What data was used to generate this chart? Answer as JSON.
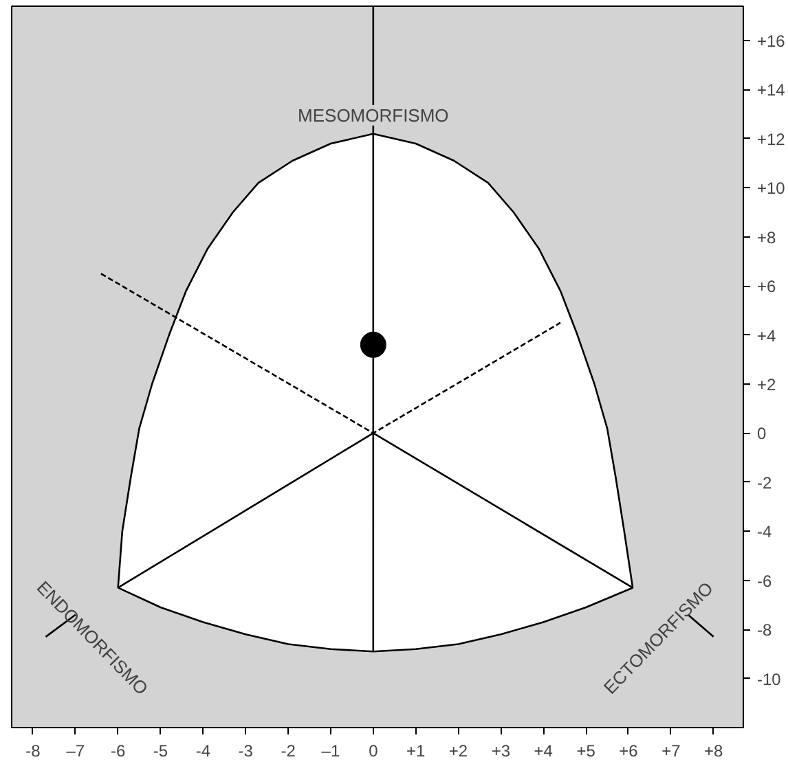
{
  "chart_data": {
    "type": "scatter",
    "xlim": [
      -8.5,
      8.7
    ],
    "ylim": [
      -12,
      17.4
    ],
    "xticks": [
      {
        "value": -8,
        "label": "-8"
      },
      {
        "value": -7,
        "label": "–7"
      },
      {
        "value": -6,
        "label": "-6"
      },
      {
        "value": -5,
        "label": "-5"
      },
      {
        "value": -4,
        "label": "-4"
      },
      {
        "value": -3,
        "label": "-3"
      },
      {
        "value": -2,
        "label": "-2"
      },
      {
        "value": -1,
        "label": "–1"
      },
      0,
      {
        "value": 1,
        "label": "+1"
      },
      {
        "value": 2,
        "label": "+2"
      },
      {
        "value": 3,
        "label": "+3"
      },
      {
        "value": 4,
        "label": "+4"
      },
      {
        "value": 5,
        "label": "+5"
      },
      {
        "value": 6,
        "label": "+6"
      },
      {
        "value": 7,
        "label": "+7"
      },
      {
        "value": 8,
        "label": "+8"
      }
    ],
    "yticks": [
      {
        "value": 16,
        "label": "+16"
      },
      {
        "value": 14,
        "label": "+14"
      },
      {
        "value": 12,
        "label": "+12"
      },
      {
        "value": 10,
        "label": "+10"
      },
      {
        "value": 8,
        "label": "+8"
      },
      {
        "value": 6,
        "label": "+6"
      },
      {
        "value": 4,
        "label": "+4"
      },
      {
        "value": 2,
        "label": "+2"
      },
      0,
      -2,
      -4,
      -6,
      -8,
      -10
    ],
    "grid": false,
    "series": [
      {
        "type": "area",
        "color": "#ffffff",
        "x": [
          0,
          -1.0,
          -1.9,
          -2.7,
          -3.3,
          -3.9,
          -4.4,
          -4.8,
          -5.2,
          -5.5,
          -5.7,
          -5.9,
          -6,
          -5,
          -4,
          -3,
          -2,
          -1,
          0,
          1,
          2,
          3,
          4,
          5,
          6.1,
          5.9,
          5.7,
          5.5,
          5.2,
          4.8,
          4.4,
          3.9,
          3.3,
          2.7,
          1.9,
          1.0,
          0
        ],
        "values": [
          12.2,
          11.8,
          11.1,
          10.2,
          9.0,
          7.5,
          5.8,
          4.0,
          2.0,
          0.2,
          -1.8,
          -4.0,
          -6.3,
          -7.1,
          -7.7,
          -8.2,
          -8.6,
          -8.8,
          -8.9,
          -8.8,
          -8.6,
          -8.2,
          -7.7,
          -7.1,
          -6.3,
          -4.0,
          -1.8,
          0.2,
          2.0,
          4.0,
          5.8,
          7.5,
          9.0,
          10.2,
          11.1,
          11.8,
          12.2
        ]
      },
      {
        "type": "line",
        "color": "#000000",
        "x": [
          -6,
          0,
          0
        ],
        "values": [
          -6.3,
          0,
          17.4
        ]
      },
      {
        "type": "line",
        "color": "#000000",
        "x": [
          6.1,
          0,
          0
        ],
        "values": [
          -6.3,
          0,
          -8.9
        ]
      },
      {
        "type": "line",
        "color": "#000000",
        "x": [
          -6.4,
          0,
          4.4
        ],
        "values": [
          6.5,
          0,
          4.5
        ],
        "line_style": "dashed"
      },
      {
        "type": "line",
        "color": "#000000",
        "x": [
          -7.7,
          -7
        ],
        "values": [
          -8.3,
          -7.4
        ]
      },
      {
        "type": "line",
        "color": "#000000",
        "x": [
          7.4,
          8
        ],
        "values": [
          -7.4,
          -8.3
        ]
      },
      {
        "color": "#000000",
        "marker": "circle",
        "x": [
          0
        ],
        "values": [
          3.6
        ]
      }
    ],
    "annotations": [
      {
        "text": "MESOMORFISMO",
        "x": 0,
        "y": 12.2
      },
      {
        "text": "ENDOMORFISMO",
        "x": -6,
        "y": -6.3
      },
      {
        "text": "ECTOMORFISMO",
        "x": 6.1,
        "y": -6.3
      }
    ]
  }
}
